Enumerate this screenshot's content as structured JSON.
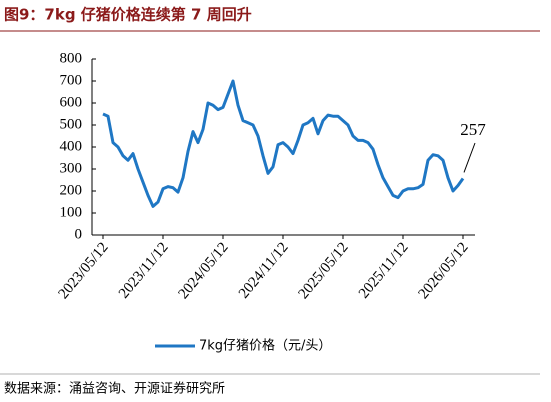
{
  "chart_data": {
    "type": "line",
    "title": "图9：7kg 仔猪价格连续第 7 周回升",
    "source": "数据来源：涌益咨询、开源证券研究所",
    "annotation": "257",
    "categories": [
      "2023/05/12",
      null,
      null,
      null,
      null,
      null,
      null,
      null,
      null,
      null,
      null,
      null,
      "2023/11/12",
      null,
      null,
      null,
      null,
      null,
      null,
      null,
      null,
      null,
      null,
      null,
      "2024/05/12",
      null,
      null,
      null,
      null,
      null,
      null,
      null,
      null,
      null,
      null,
      null,
      "2024/11/12",
      null,
      null,
      null,
      null,
      null,
      null,
      null,
      null,
      null,
      null,
      null,
      "2025/05/12",
      null,
      null,
      null,
      null,
      null,
      null,
      null,
      null,
      null,
      null,
      null,
      "2025/11/12",
      null,
      null,
      null,
      null,
      null,
      null,
      null,
      null,
      null,
      null,
      null,
      "2026/05/12"
    ],
    "series": [
      {
        "name": "7kg仔猪价格（元/头）",
        "color": "#1f77c4",
        "values": [
          550,
          540,
          420,
          400,
          360,
          340,
          370,
          300,
          240,
          180,
          130,
          150,
          210,
          220,
          215,
          195,
          260,
          380,
          470,
          420,
          480,
          600,
          590,
          570,
          580,
          640,
          700,
          590,
          520,
          510,
          500,
          450,
          360,
          280,
          310,
          410,
          420,
          400,
          370,
          430,
          500,
          510,
          530,
          460,
          520,
          545,
          540,
          540,
          520,
          500,
          450,
          430,
          430,
          420,
          390,
          320,
          260,
          220,
          180,
          170,
          200,
          210,
          210,
          215,
          230,
          340,
          365,
          360,
          340,
          260,
          200,
          225,
          257
        ]
      }
    ],
    "ylim": [
      0,
      800
    ],
    "yticks": [
      0,
      100,
      200,
      300,
      400,
      500,
      600,
      700,
      800
    ]
  }
}
